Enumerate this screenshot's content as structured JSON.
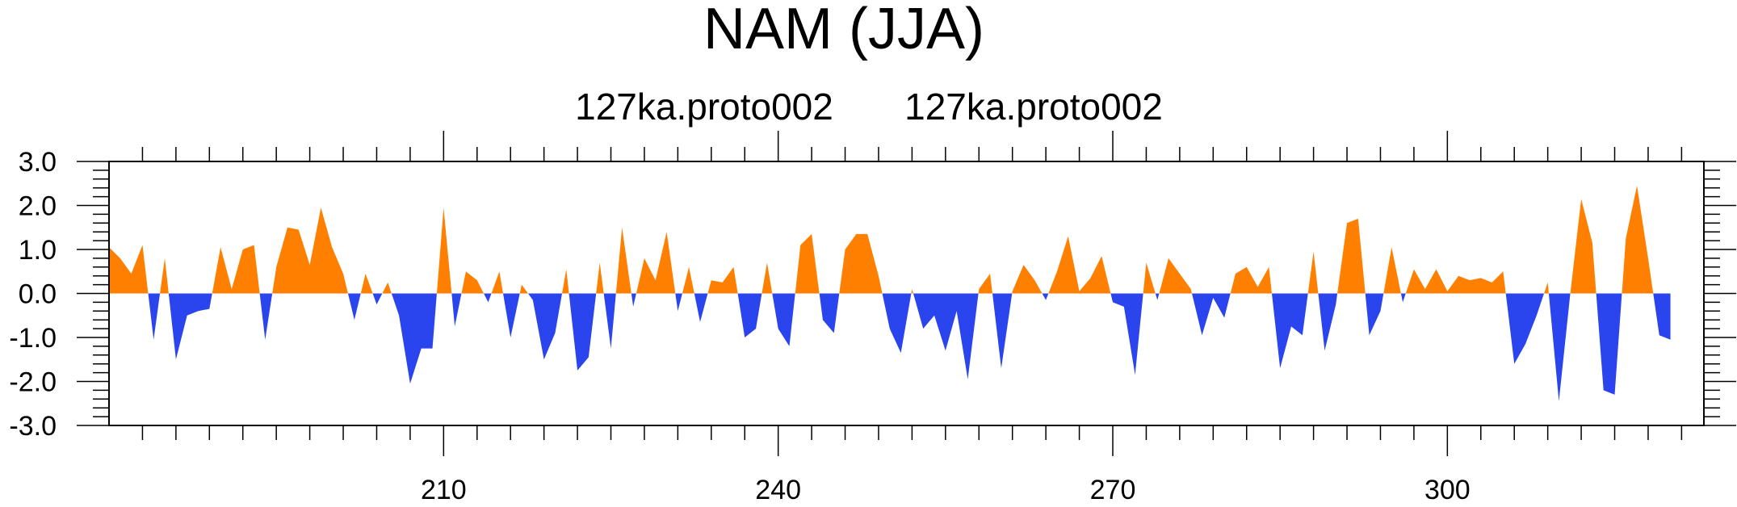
{
  "chart_data": {
    "type": "area",
    "title": "NAM (JJA)",
    "subtitle_left": "127ka.proto002",
    "subtitle_right": "127ka.proto002",
    "xlabel": "",
    "ylabel": "",
    "xlim": [
      180,
      323
    ],
    "ylim": [
      -3.0,
      3.0
    ],
    "x_ticks": [
      210,
      240,
      270,
      300
    ],
    "y_ticks": [
      "-3.0",
      "-2.0",
      "-1.0",
      "0.0",
      "1.0",
      "2.0",
      "3.0"
    ],
    "y_tick_values": [
      -3,
      -2,
      -1,
      0,
      1,
      2,
      3
    ],
    "grid": false,
    "legend": "none",
    "positive_color": "#ff8000",
    "negative_color": "#2b45ee",
    "x_start": 180,
    "x_end": 320,
    "values": [
      1.05,
      0.8,
      0.45,
      1.1,
      -1.05,
      0.8,
      -1.5,
      -0.5,
      -0.4,
      -0.35,
      1.05,
      0.1,
      1.0,
      1.1,
      -1.05,
      0.6,
      1.5,
      1.45,
      0.65,
      1.95,
      1.05,
      0.45,
      -0.6,
      0.45,
      -0.25,
      0.25,
      -0.5,
      -2.05,
      -1.25,
      -1.25,
      1.95,
      -0.75,
      0.5,
      0.3,
      -0.2,
      0.5,
      -1.0,
      0.2,
      -0.15,
      -1.5,
      -0.9,
      0.55,
      -1.75,
      -1.45,
      0.7,
      -1.25,
      1.5,
      -0.3,
      0.8,
      0.3,
      1.4,
      -0.4,
      0.6,
      -0.65,
      0.3,
      0.25,
      0.6,
      -1.0,
      -0.8,
      0.7,
      -0.8,
      -1.2,
      1.1,
      1.35,
      -0.6,
      -0.9,
      1.0,
      1.35,
      1.35,
      0.4,
      -0.8,
      -1.35,
      0.1,
      -0.8,
      -0.5,
      -1.3,
      -0.4,
      -1.95,
      0.1,
      0.45,
      -1.7,
      0.05,
      0.65,
      0.3,
      -0.15,
      0.5,
      1.3,
      0.05,
      0.35,
      0.85,
      -0.2,
      -0.3,
      -1.85,
      0.7,
      -0.15,
      0.8,
      0.45,
      0.1,
      -0.95,
      -0.1,
      -0.55,
      0.45,
      0.6,
      0.15,
      0.6,
      -1.7,
      -0.75,
      -0.95,
      0.95,
      -1.3,
      -0.25,
      1.6,
      1.7,
      -0.95,
      -0.4,
      1.05,
      -0.2,
      0.55,
      0.1,
      0.55,
      0.05,
      0.4,
      0.3,
      0.35,
      0.25,
      0.5,
      -1.6,
      -1.15,
      -0.5,
      0.25,
      -2.45,
      -0.05,
      2.15,
      1.15,
      -2.2,
      -2.3,
      1.25,
      2.45,
      0.8,
      -0.95,
      -1.05
    ]
  }
}
